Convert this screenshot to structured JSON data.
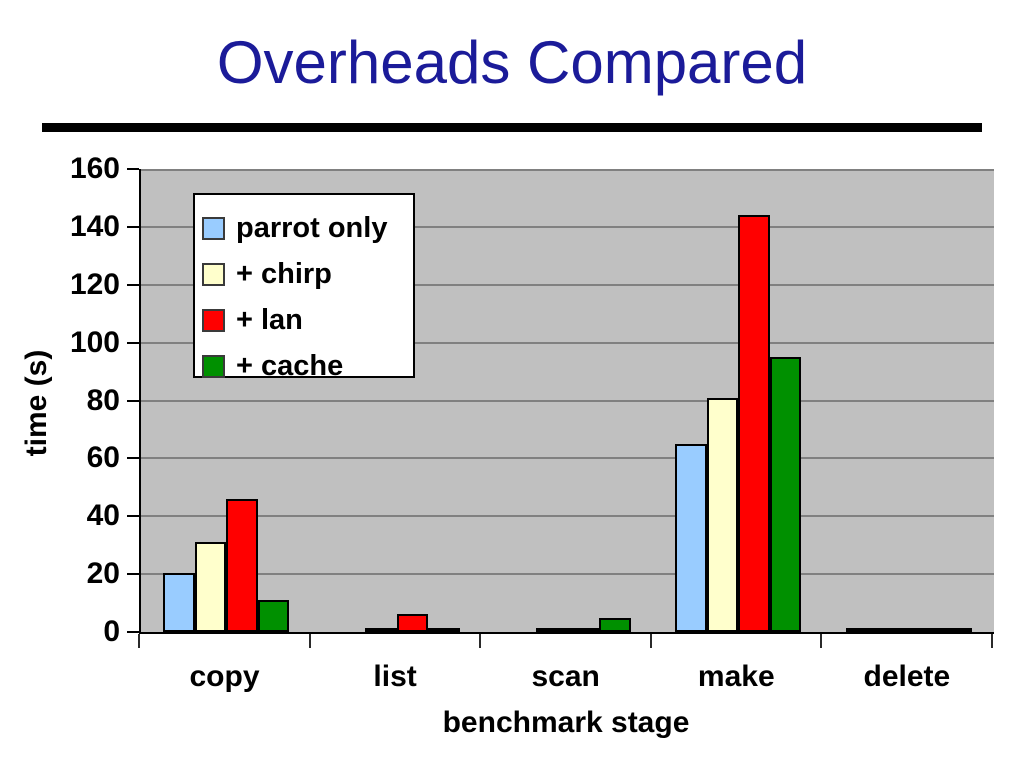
{
  "slide": {
    "title": "Overheads Compared"
  },
  "style": {
    "title_color": "#1b1b99",
    "rule_color": "#000000",
    "text_color": "#000000"
  },
  "chart_data": {
    "type": "bar",
    "title": "",
    "xlabel": "benchmark stage",
    "ylabel": "time (s)",
    "categories": [
      "copy",
      "list",
      "scan",
      "make",
      "delete"
    ],
    "series": [
      {
        "name": "parrot only",
        "color": "#99CCFF",
        "values": [
          20.5,
          0,
          0,
          65,
          0.9
        ]
      },
      {
        "name": "+ chirp",
        "color": "#FFFFCC",
        "values": [
          31,
          1,
          0.5,
          81,
          0.9
        ]
      },
      {
        "name": "+ lan",
        "color": "#FF0000",
        "values": [
          46,
          6.3,
          1.5,
          144,
          1.0
        ]
      },
      {
        "name": "+ cache",
        "color": "#009000",
        "values": [
          11,
          0.5,
          4.9,
          95,
          1.0
        ]
      }
    ],
    "ylim": [
      0,
      160
    ],
    "yticks": [
      0,
      20,
      40,
      60,
      80,
      100,
      120,
      140,
      160
    ],
    "grid": "horizontal",
    "legend_position": "upper-left",
    "plot_bg": "#C0C0C0",
    "grid_color": "#808080"
  }
}
